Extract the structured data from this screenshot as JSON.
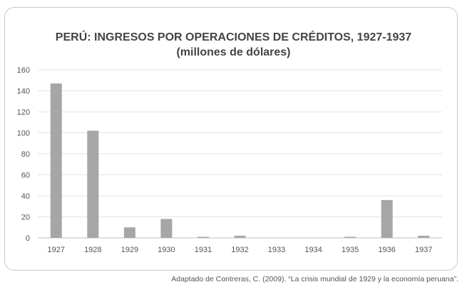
{
  "chart_data": {
    "type": "bar",
    "title": "PERÚ: INGRESOS POR OPERACIONES DE CRÉDITOS, 1927-1937",
    "subtitle": "(millones de dólares)",
    "categories": [
      "1927",
      "1928",
      "1929",
      "1930",
      "1931",
      "1932",
      "1933",
      "1934",
      "1935",
      "1936",
      "1937"
    ],
    "values": [
      147,
      102,
      10,
      18,
      1,
      2,
      0,
      0,
      1,
      36,
      2
    ],
    "ylim": [
      0,
      160
    ],
    "yticks": [
      "0",
      "20",
      "40",
      "60",
      "80",
      "100",
      "120",
      "140",
      "160"
    ],
    "grid": true,
    "bar_color": "#a6a6a6"
  },
  "source": "Adaptado de Contreras, C. (2009). “La crisis mundial de 1929 y la economía peruana”."
}
